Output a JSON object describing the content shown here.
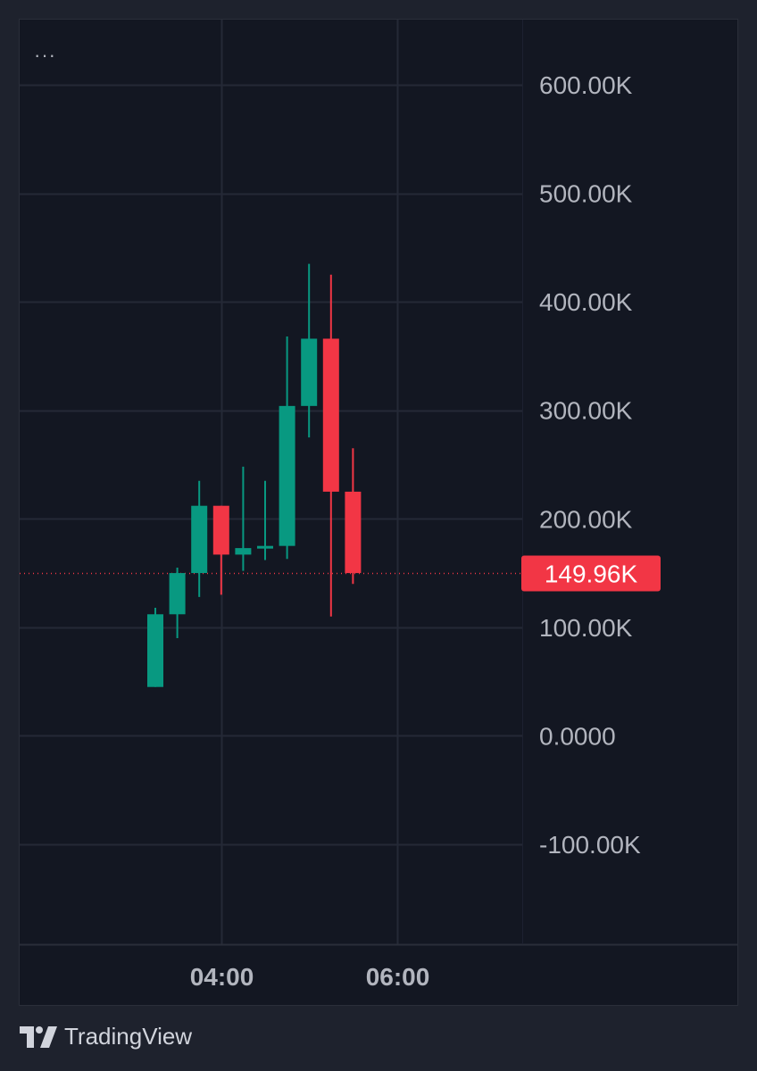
{
  "menu": {
    "label": "···"
  },
  "branding": {
    "name": "TradingView",
    "logo_icon": "tradingview-logo-icon"
  },
  "colors": {
    "up": "#089981",
    "down": "#f23645",
    "grid": "#242936",
    "axis_text": "#b2b5be",
    "last_price_line": "#f23645"
  },
  "chart_data": {
    "type": "candlestick",
    "title": "",
    "xlabel": "",
    "ylabel": "",
    "ylim": [
      -190000,
      620000
    ],
    "y_ticks": [
      600000,
      500000,
      400000,
      300000,
      200000,
      100000,
      0,
      -100000
    ],
    "y_tick_labels": [
      "600.00K",
      "500.00K",
      "400.00K",
      "300.00K",
      "200.00K",
      "100.00K",
      "0.0000",
      "-100.00K"
    ],
    "x_tick_labels": [
      "04:00",
      "06:00"
    ],
    "x_tick_candle_index": [
      3,
      11
    ],
    "grid": true,
    "last_price": 149960,
    "last_price_label": "149.96K",
    "candles": [
      {
        "open": 45000,
        "high": 118000,
        "low": 45000,
        "close": 112000
      },
      {
        "open": 112000,
        "high": 155000,
        "low": 90000,
        "close": 150000
      },
      {
        "open": 150000,
        "high": 235000,
        "low": 128000,
        "close": 212000
      },
      {
        "open": 212000,
        "high": 212000,
        "low": 130000,
        "close": 167000
      },
      {
        "open": 167000,
        "high": 248000,
        "low": 152000,
        "close": 173000
      },
      {
        "open": 173000,
        "high": 235000,
        "low": 162000,
        "close": 175000
      },
      {
        "open": 175000,
        "high": 368000,
        "low": 163000,
        "close": 304000
      },
      {
        "open": 304000,
        "high": 435000,
        "low": 275000,
        "close": 366000
      },
      {
        "open": 366000,
        "high": 425000,
        "low": 110000,
        "close": 225000
      },
      {
        "open": 225000,
        "high": 265000,
        "low": 140000,
        "close": 150000
      }
    ]
  }
}
